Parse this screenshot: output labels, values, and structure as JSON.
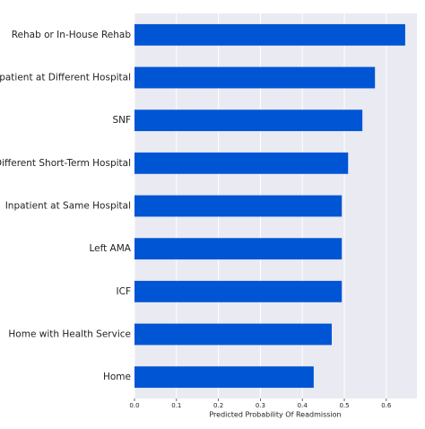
{
  "chart_data": {
    "type": "bar",
    "orientation": "horizontal",
    "xlabel": "Predicted Probability Of Readmission",
    "categories": [
      "Rehab or In-House Rehab",
      "Inpatient at Different Hospital",
      "SNF",
      "Different Short-Term Hospital",
      "Inpatient at Same Hospital",
      "Left AMA",
      "ICF",
      "Home with Health Service",
      "Home"
    ],
    "values": [
      0.645,
      0.573,
      0.543,
      0.509,
      0.494,
      0.494,
      0.494,
      0.47,
      0.427
    ],
    "color": "#0055d4",
    "xlim": [
      0,
      0.673
    ],
    "xticks": [
      {
        "value": 0,
        "label": "0.0"
      },
      0.1,
      0.2,
      0.3,
      0.4,
      0.5,
      0.6
    ],
    "grid": true
  }
}
